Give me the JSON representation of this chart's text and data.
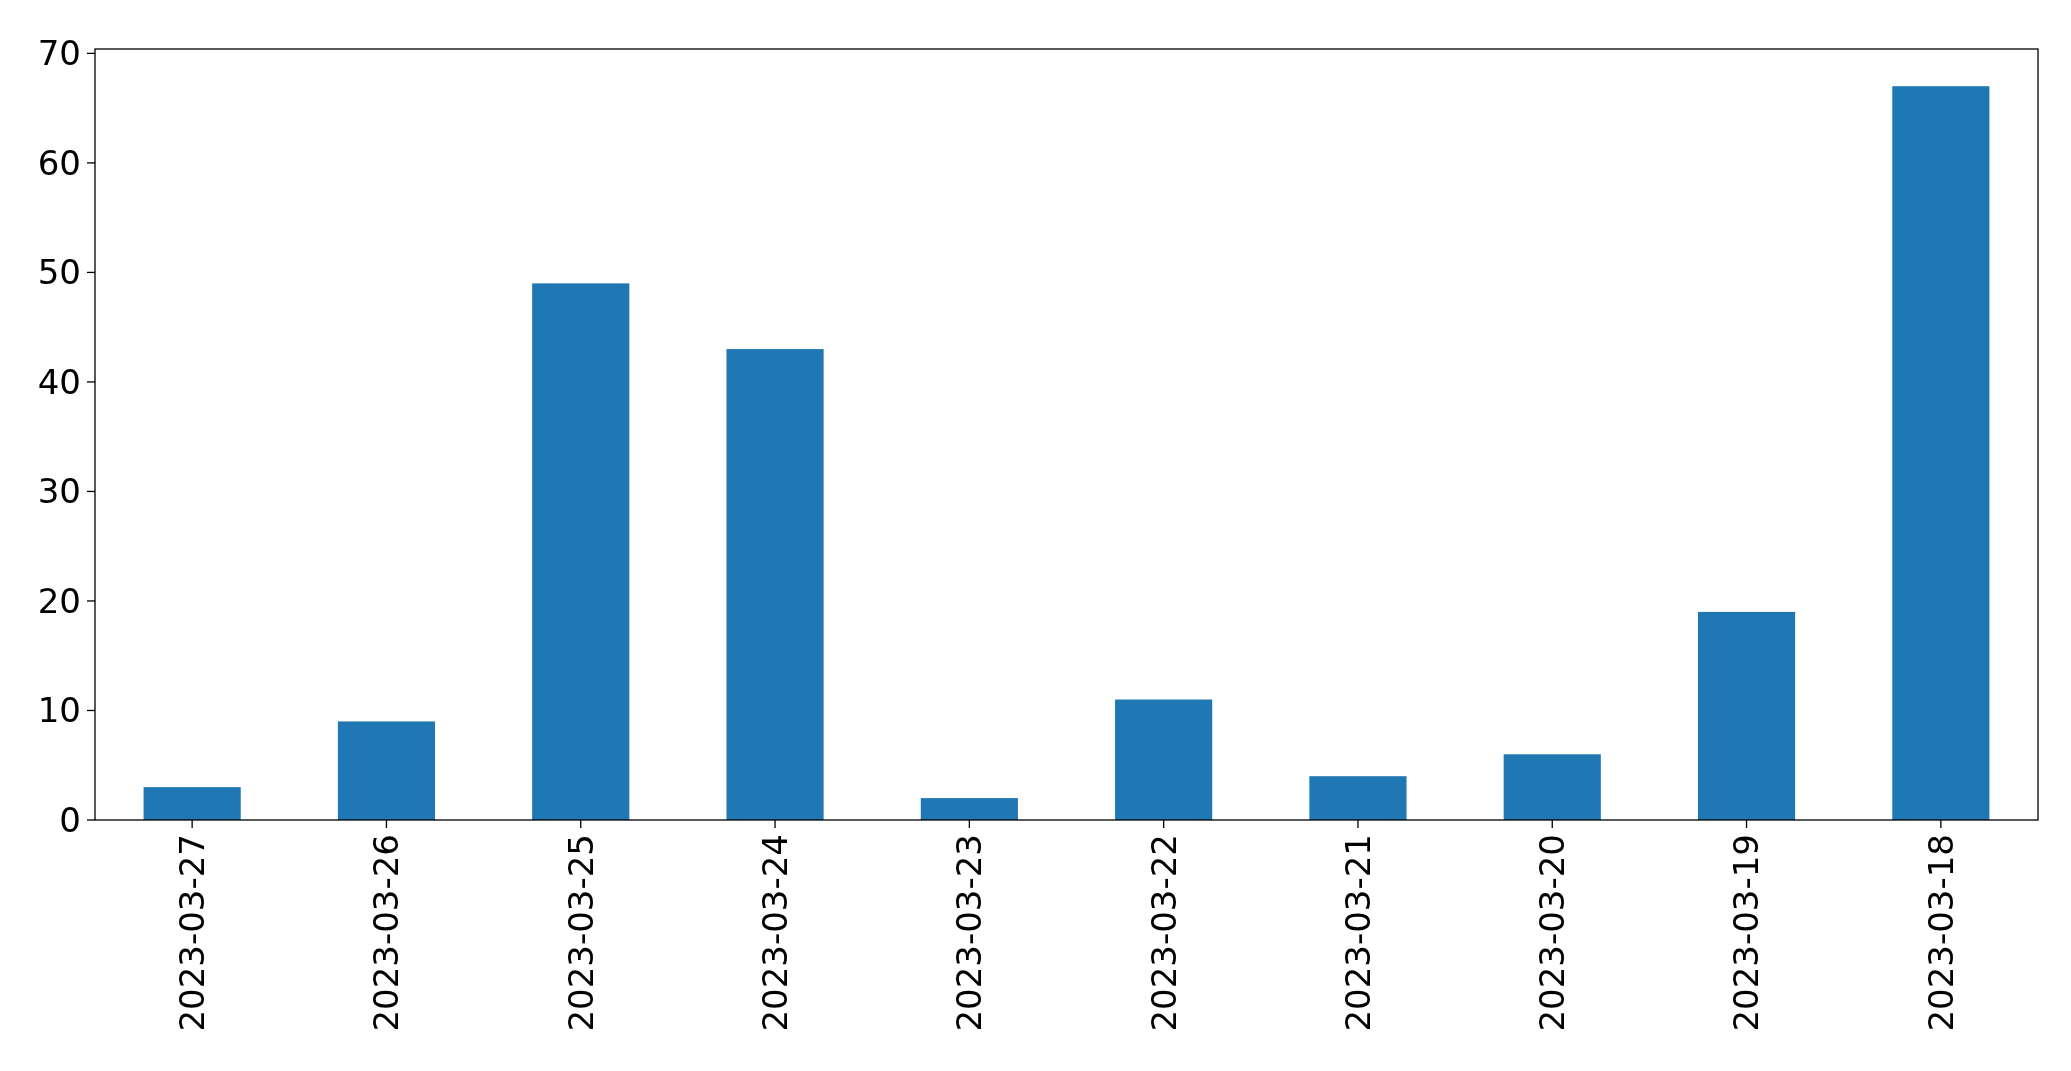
{
  "chart_data": {
    "type": "bar",
    "categories": [
      "2023-03-27",
      "2023-03-26",
      "2023-03-25",
      "2023-03-24",
      "2023-03-23",
      "2023-03-22",
      "2023-03-21",
      "2023-03-20",
      "2023-03-19",
      "2023-03-18"
    ],
    "values": [
      3,
      9,
      49,
      43,
      2,
      11,
      4,
      6,
      19,
      67
    ],
    "color": "#1f77b4",
    "ylim": [
      0,
      70.4
    ],
    "yticks": [
      0,
      10,
      20,
      30,
      40,
      50,
      60,
      70
    ],
    "grid": false
  }
}
